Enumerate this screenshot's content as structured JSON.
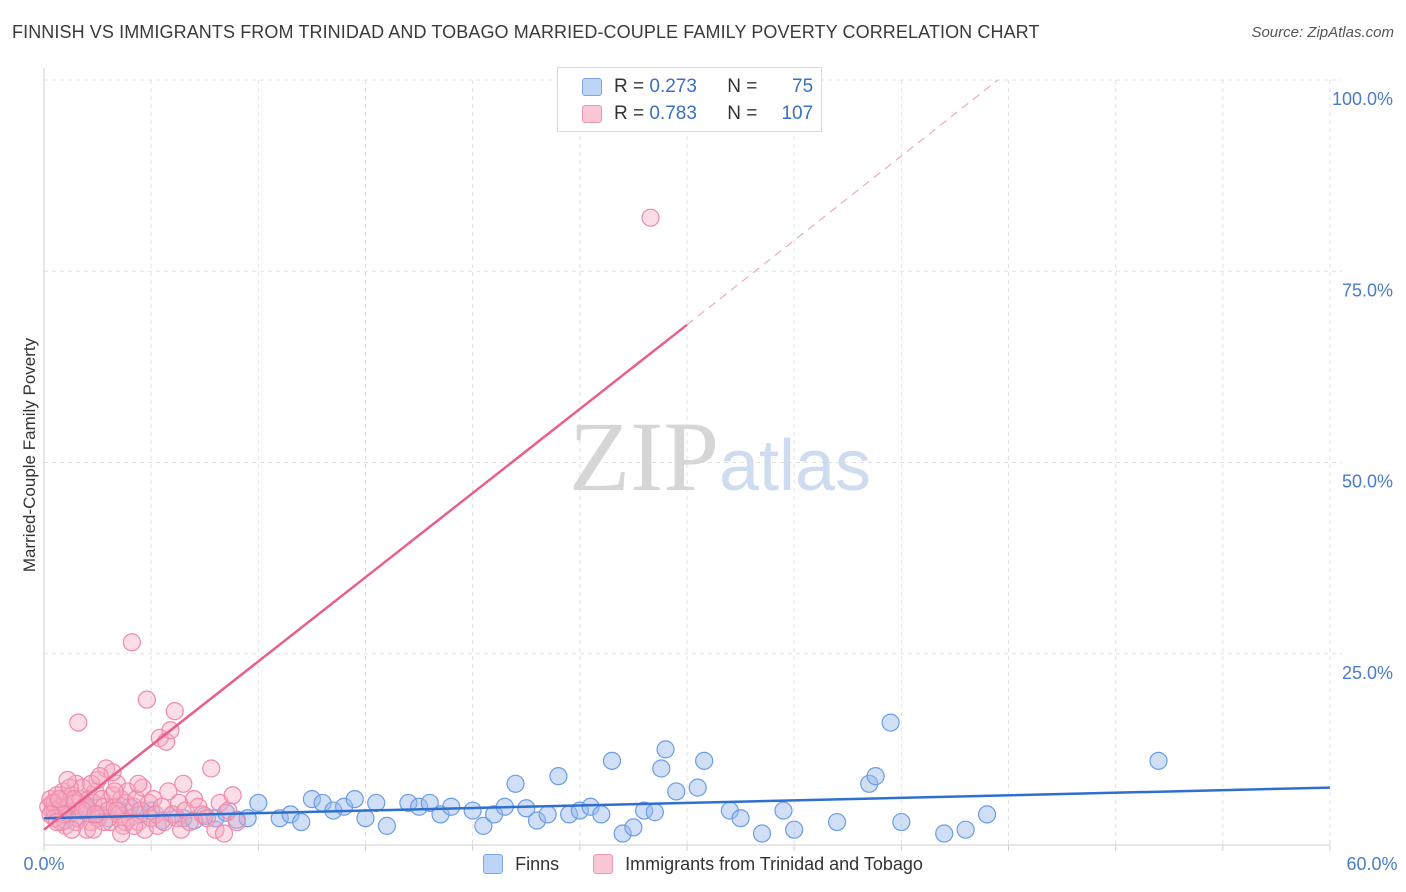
{
  "chart_data": {
    "type": "scatter",
    "title": "FINNISH VS IMMIGRANTS FROM TRINIDAD AND TOBAGO MARRIED-COUPLE FAMILY POVERTY CORRELATION CHART",
    "source": "Source: ZipAtlas.com",
    "ylabel": "Married-Couple Family Poverty",
    "xlim": [
      0,
      60
    ],
    "ylim": [
      0,
      100
    ],
    "x_tick_labels": [
      "0.0%",
      "60.0%"
    ],
    "y_ticks": [
      25,
      50,
      75,
      100
    ],
    "y_tick_labels": [
      "25.0%",
      "50.0%",
      "75.0%",
      "100.0%"
    ],
    "grid": true,
    "watermark": "ZIPatlas",
    "colors": {
      "finns": "#6b9de6",
      "finns_line": "#2f6fd0",
      "tt": "#f08aa8",
      "tt_line": "#e8608a"
    },
    "legend": {
      "r_label": "R =",
      "n_label": "N =",
      "entries": [
        {
          "name": "Finns",
          "r": "0.273",
          "n": "75"
        },
        {
          "name": "Immigrants from Trinidad and Tobago",
          "r": "0.783",
          "n": "107"
        }
      ]
    },
    "series": [
      {
        "name": "Finns",
        "trend": {
          "x0": 0,
          "y0": 3.5,
          "x1": 60,
          "y1": 7.5
        },
        "points": [
          [
            0.5,
            4.5
          ],
          [
            1,
            4
          ],
          [
            1.5,
            3.5
          ],
          [
            2,
            5
          ],
          [
            2.5,
            4
          ],
          [
            3,
            3.5
          ],
          [
            3.5,
            4.5
          ],
          [
            4,
            5
          ],
          [
            4.5,
            4
          ],
          [
            5,
            4.5
          ],
          [
            5.5,
            3.2
          ],
          [
            6,
            4
          ],
          [
            6.5,
            3.5
          ],
          [
            7,
            3.2
          ],
          [
            7.5,
            3.8
          ],
          [
            8,
            3.5
          ],
          [
            8.5,
            4.2
          ],
          [
            9,
            3.3
          ],
          [
            9.5,
            3.5
          ],
          [
            10,
            5.5
          ],
          [
            11,
            3.5
          ],
          [
            11.5,
            4
          ],
          [
            12,
            3
          ],
          [
            12.5,
            6
          ],
          [
            13,
            5.5
          ],
          [
            13.5,
            4.5
          ],
          [
            14,
            5
          ],
          [
            14.5,
            6
          ],
          [
            15,
            3.5
          ],
          [
            15.5,
            5.5
          ],
          [
            16,
            2.5
          ],
          [
            17,
            5.5
          ],
          [
            17.5,
            5
          ],
          [
            18,
            5.5
          ],
          [
            18.5,
            4
          ],
          [
            19,
            5
          ],
          [
            20,
            4.5
          ],
          [
            20.5,
            2.5
          ],
          [
            21,
            4
          ],
          [
            21.5,
            5
          ],
          [
            22,
            8
          ],
          [
            22.5,
            4.8
          ],
          [
            23,
            3.2
          ],
          [
            23.5,
            4
          ],
          [
            24,
            9
          ],
          [
            24.5,
            4
          ],
          [
            25,
            4.5
          ],
          [
            25.5,
            5
          ],
          [
            26,
            4
          ],
          [
            26.5,
            11
          ],
          [
            27,
            1.5
          ],
          [
            27.5,
            2.3
          ],
          [
            28,
            4.5
          ],
          [
            28.5,
            4.3
          ],
          [
            28.8,
            10
          ],
          [
            29.5,
            7
          ],
          [
            29,
            12.5
          ],
          [
            30.5,
            7.5
          ],
          [
            30.8,
            11
          ],
          [
            32,
            4.5
          ],
          [
            32.5,
            3.5
          ],
          [
            33.5,
            1.5
          ],
          [
            34.5,
            4.5
          ],
          [
            35,
            2
          ],
          [
            37,
            3
          ],
          [
            38.5,
            8
          ],
          [
            38.8,
            9
          ],
          [
            39.5,
            16
          ],
          [
            40,
            3
          ],
          [
            42,
            1.5
          ],
          [
            43,
            2
          ],
          [
            44,
            4
          ],
          [
            52,
            11
          ],
          [
            1,
            3.2
          ],
          [
            2,
            4.8
          ]
        ]
      },
      {
        "name": "Immigrants from Trinidad and Tobago",
        "trend": {
          "x0": 0,
          "y0": 2,
          "x1": 30,
          "y1": 68,
          "dash_x1": 44.5,
          "dash_y1": 100
        },
        "points": [
          [
            0.2,
            5
          ],
          [
            0.3,
            6
          ],
          [
            0.4,
            4.5
          ],
          [
            0.5,
            5.5
          ],
          [
            0.6,
            6.5
          ],
          [
            0.7,
            4
          ],
          [
            0.8,
            5
          ],
          [
            0.9,
            7
          ],
          [
            1,
            6
          ],
          [
            1.1,
            5
          ],
          [
            1.2,
            4
          ],
          [
            1.3,
            6.5
          ],
          [
            1.4,
            5.5
          ],
          [
            1.5,
            8
          ],
          [
            1.6,
            3.5
          ],
          [
            1.7,
            6
          ],
          [
            1.8,
            7.5
          ],
          [
            1.9,
            5
          ],
          [
            2,
            4.5
          ],
          [
            2.1,
            6
          ],
          [
            2.2,
            3
          ],
          [
            2.3,
            5.5
          ],
          [
            2.4,
            7
          ],
          [
            2.5,
            8.5
          ],
          [
            2.6,
            4
          ],
          [
            2.7,
            6
          ],
          [
            2.8,
            5
          ],
          [
            2.9,
            10
          ],
          [
            3,
            4.5
          ],
          [
            3.1,
            3
          ],
          [
            3.2,
            6.5
          ],
          [
            3.3,
            5
          ],
          [
            3.4,
            8
          ],
          [
            3.5,
            4
          ],
          [
            3.6,
            6
          ],
          [
            3.7,
            2.5
          ],
          [
            3.8,
            5.5
          ],
          [
            3.9,
            7
          ],
          [
            4,
            3.5
          ],
          [
            4.1,
            26.5
          ],
          [
            4.2,
            5
          ],
          [
            4.3,
            6
          ],
          [
            4.4,
            3
          ],
          [
            4.5,
            4.5
          ],
          [
            4.6,
            7.5
          ],
          [
            4.7,
            2
          ],
          [
            4.8,
            19
          ],
          [
            4.9,
            5.5
          ],
          [
            5,
            3.5
          ],
          [
            5.1,
            6
          ],
          [
            5.2,
            4
          ],
          [
            5.3,
            2.5
          ],
          [
            5.4,
            14
          ],
          [
            5.5,
            5
          ],
          [
            5.6,
            3
          ],
          [
            5.7,
            13.5
          ],
          [
            5.8,
            7
          ],
          [
            5.9,
            15
          ],
          [
            6,
            4
          ],
          [
            6.1,
            17.5
          ],
          [
            6.2,
            3.5
          ],
          [
            6.3,
            5.5
          ],
          [
            6.4,
            2
          ],
          [
            6.5,
            8
          ],
          [
            6.6,
            4.5
          ],
          [
            6.8,
            3
          ],
          [
            7,
            6
          ],
          [
            7.2,
            5
          ],
          [
            7.4,
            4
          ],
          [
            7.6,
            3.5
          ],
          [
            7.8,
            10
          ],
          [
            8,
            2
          ],
          [
            8.2,
            5.5
          ],
          [
            8.4,
            1.5
          ],
          [
            8.6,
            4.5
          ],
          [
            8.8,
            6.5
          ],
          [
            9,
            3
          ],
          [
            1,
            2.5
          ],
          [
            1.5,
            3
          ],
          [
            2,
            2
          ],
          [
            2.5,
            3.5
          ],
          [
            0.8,
            3
          ],
          [
            1.2,
            7.5
          ],
          [
            2.2,
            8
          ],
          [
            3.2,
            9.5
          ],
          [
            1.6,
            16
          ],
          [
            0.4,
            5.5
          ],
          [
            0.9,
            4
          ],
          [
            1.4,
            6
          ],
          [
            2.8,
            3
          ],
          [
            3.3,
            7
          ],
          [
            3.8,
            3
          ],
          [
            4.4,
            8
          ],
          [
            0.5,
            3.5
          ],
          [
            1.1,
            8.5
          ],
          [
            1.8,
            4.5
          ],
          [
            2.3,
            2
          ],
          [
            2.6,
            9
          ],
          [
            3.6,
            1.5
          ],
          [
            4.2,
            2.5
          ],
          [
            0.3,
            4
          ],
          [
            0.6,
            3
          ],
          [
            1.3,
            2
          ],
          [
            2.4,
            4
          ],
          [
            3.4,
            4.5
          ],
          [
            28.3,
            82
          ],
          [
            0.7,
            6
          ]
        ]
      }
    ]
  }
}
